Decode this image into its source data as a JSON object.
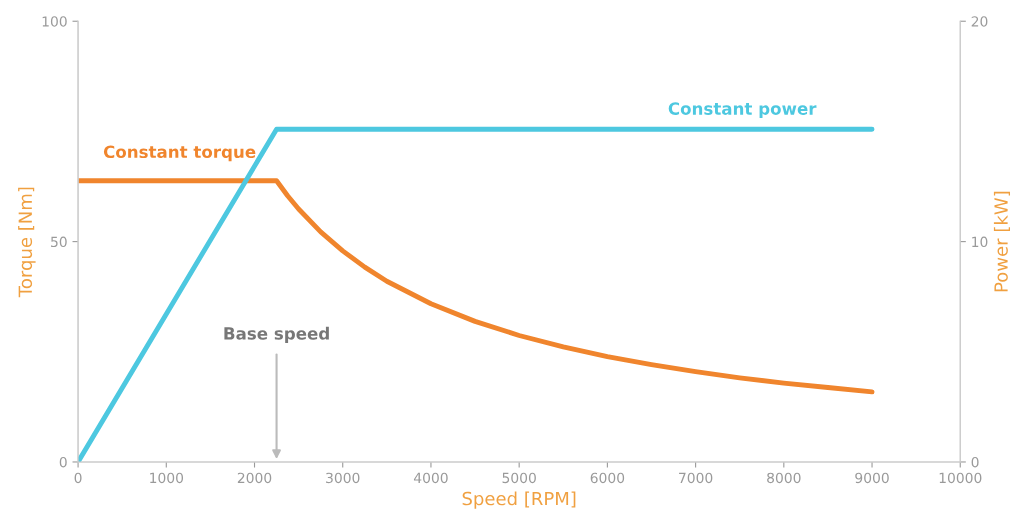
{
  "chart_data": {
    "type": "line",
    "xlabel": "Speed [RPM]",
    "ylabel": "Torque [Nm]",
    "y2label": "Power [kW]",
    "xlim": [
      0,
      10000
    ],
    "xticks": [
      0,
      1000,
      2000,
      3000,
      4000,
      5000,
      6000,
      7000,
      8000,
      9000,
      10000
    ],
    "ylim": [
      0,
      100
    ],
    "yticks": [
      0,
      50,
      100
    ],
    "y2lim": [
      0,
      20
    ],
    "y2ticks": [
      0,
      10,
      20
    ],
    "grid": false,
    "legend": false,
    "series": [
      {
        "name": "Constant torque",
        "color": "#f0852d",
        "axis": "y",
        "x": [
          0,
          2250,
          2375,
          2500,
          2750,
          3000,
          3250,
          3500,
          4000,
          4500,
          5000,
          5500,
          6000,
          6500,
          7000,
          7500,
          8000,
          8500,
          9000
        ],
        "values": [
          63.8,
          63.8,
          60.4,
          57.4,
          52.2,
          47.9,
          44.2,
          41.0,
          35.9,
          31.9,
          28.7,
          26.1,
          23.9,
          22.1,
          20.5,
          19.1,
          17.9,
          16.9,
          15.9
        ]
      },
      {
        "name": "Constant power",
        "color": "#4dc8e0",
        "axis": "y2",
        "x": [
          0,
          2250,
          9000
        ],
        "values": [
          0,
          15.1,
          15.1
        ]
      }
    ],
    "annotations": [
      "Base speed"
    ]
  }
}
